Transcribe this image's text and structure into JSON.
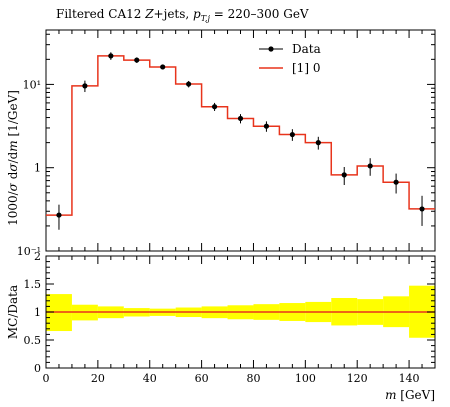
{
  "chart_data": [
    {
      "type": "line",
      "title": "Filtered CA12 Z+jets, p_{T,j} = 220–300 GeV",
      "title_parts": {
        "prefix": "Filtered CA12 ",
        "z": "Z",
        "mid": "+jets, ",
        "p": "p",
        "sub": "T,j",
        "suffix": " = 220–300 GeV"
      },
      "ylabel": "1000/(σ dσ) dσ/dm [1/GeV]",
      "ylabel_text": "1000/σ dσ/dm [1/GeV]",
      "yscale": "log",
      "ylim": [
        0.1,
        45
      ],
      "xlim": [
        0,
        150
      ],
      "y_tick_labels": [
        "10⁻¹",
        "1",
        "10¹"
      ],
      "y_tick_values": [
        0.1,
        1,
        10
      ],
      "legend": {
        "position": "top-right",
        "entries": [
          "Data",
          "[1] 0"
        ]
      },
      "bin_edges": [
        0,
        10,
        20,
        30,
        40,
        50,
        60,
        70,
        80,
        90,
        100,
        110,
        120,
        130,
        140,
        150
      ],
      "series": [
        {
          "name": "Data",
          "style": "points-with-errors",
          "color": "#000000",
          "x": [
            5,
            15,
            25,
            35,
            45,
            55,
            65,
            75,
            85,
            95,
            105,
            115,
            125,
            135,
            145
          ],
          "y": [
            0.27,
            9.6,
            22,
            19.6,
            16.2,
            10.1,
            5.4,
            3.9,
            3.15,
            2.5,
            2.0,
            0.82,
            1.05,
            0.67,
            0.32
          ],
          "err_low": [
            0.09,
            1.5,
            2.3,
            1.5,
            1.1,
            0.9,
            0.6,
            0.5,
            0.45,
            0.4,
            0.35,
            0.2,
            0.25,
            0.18,
            0.12
          ],
          "err_high": [
            0.09,
            1.5,
            2.3,
            1.5,
            1.1,
            0.9,
            0.6,
            0.5,
            0.45,
            0.4,
            0.35,
            0.2,
            0.25,
            0.18,
            0.14
          ]
        },
        {
          "name": "[1] 0",
          "style": "step",
          "color": "#e8341c",
          "values": [
            0.27,
            9.6,
            22,
            19.6,
            16.2,
            10.1,
            5.4,
            3.9,
            3.15,
            2.5,
            2.0,
            0.82,
            1.05,
            0.67,
            0.32
          ]
        }
      ]
    },
    {
      "type": "line",
      "ylabel": "MC/Data",
      "xlabel": "m [GeV]",
      "xlabel_parts": {
        "m": "m",
        "unit": " [GeV]"
      },
      "ylim": [
        0.0,
        2.0
      ],
      "xlim": [
        0,
        150
      ],
      "y_tick_labels": [
        "0",
        "0.5",
        "1",
        "1.5",
        "2"
      ],
      "y_tick_values": [
        0,
        0.5,
        1,
        1.5,
        2
      ],
      "x_tick_labels": [
        "0",
        "20",
        "40",
        "60",
        "80",
        "100",
        "120",
        "140"
      ],
      "x_tick_values": [
        0,
        20,
        40,
        60,
        80,
        100,
        120,
        140
      ],
      "bin_edges": [
        0,
        10,
        20,
        30,
        40,
        50,
        60,
        70,
        80,
        90,
        100,
        110,
        120,
        130,
        140,
        150
      ],
      "band": {
        "color": "#ffff00",
        "low": [
          0.66,
          0.85,
          0.89,
          0.92,
          0.93,
          0.91,
          0.89,
          0.87,
          0.86,
          0.84,
          0.82,
          0.76,
          0.77,
          0.73,
          0.54
        ],
        "high": [
          1.32,
          1.13,
          1.1,
          1.07,
          1.06,
          1.08,
          1.1,
          1.12,
          1.14,
          1.16,
          1.18,
          1.25,
          1.23,
          1.28,
          1.47
        ]
      },
      "series": [
        {
          "name": "[1] 0",
          "color": "#e8341c",
          "values": [
            1,
            1,
            1,
            1,
            1,
            1,
            1,
            1,
            1,
            1,
            1,
            1,
            1,
            1,
            1
          ]
        }
      ]
    }
  ]
}
